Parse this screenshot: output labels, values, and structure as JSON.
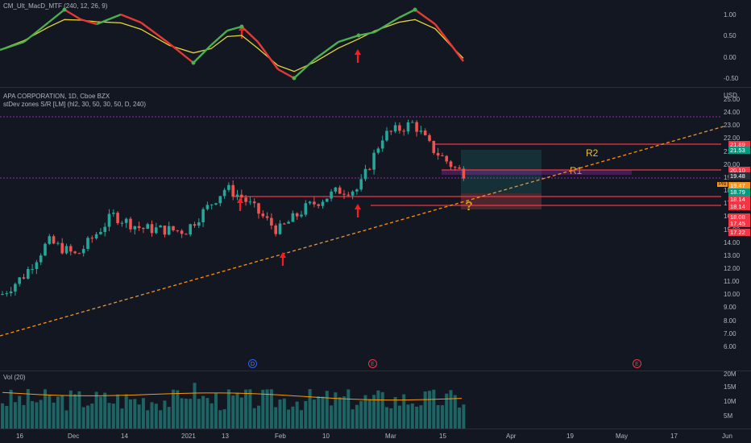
{
  "macd": {
    "title": "CM_Ult_MacD_MTF (240, 12, 26, 9)",
    "ticks": [
      "1.00",
      "0.50",
      "0.00",
      "-0.50"
    ]
  },
  "price": {
    "symbol": "APA CORPORATION, 1D, Cboe BZX",
    "indicator": "stDev zones S/R [LM] (hl2, 30, 50, 30, 50, D, 240)",
    "currency": "USD",
    "ticks": [
      "25.00",
      "24.00",
      "23.00",
      "22.00",
      "21.00",
      "20.00",
      "19.00",
      "18.00",
      "17.00",
      "16.00",
      "15.00",
      "14.00",
      "13.00",
      "12.00",
      "11.00",
      "10.00",
      "9.00",
      "8.00",
      "7.00",
      "6.00"
    ],
    "tags": [
      {
        "text": "21.89",
        "color": "#f23645"
      },
      {
        "text": "21.53",
        "color": "#089981"
      },
      {
        "text": "20.10",
        "color": "#f23645"
      },
      {
        "text": "19.48",
        "color": "#2a2e39"
      },
      {
        "text": "19.47",
        "color": "#f7931a"
      },
      {
        "text": "18.79",
        "color": "#089981"
      },
      {
        "text": "18.14",
        "color": "#f23645"
      },
      {
        "text": "18.14",
        "color": "#f23645"
      },
      {
        "text": "18.08",
        "color": "#f23645"
      },
      {
        "text": "17.45",
        "color": "#f23645"
      },
      {
        "text": "17.22",
        "color": "#f23645"
      }
    ],
    "pre_label": "Pre",
    "annotations": {
      "r1": "R1",
      "r2": "R2",
      "question": "?"
    },
    "events": [
      "D",
      "E",
      "E"
    ]
  },
  "volume": {
    "title": "Vol (20)",
    "ticks": [
      "20M",
      "15M",
      "10M",
      "5M"
    ]
  },
  "dates": [
    "16",
    "Dec",
    "14",
    "2021",
    "13",
    "Feb",
    "10",
    "Mar",
    "15",
    "Apr",
    "19",
    "May",
    "17",
    "Jun"
  ],
  "colors": {
    "bg": "#131722",
    "up": "#26a69a",
    "down": "#ef5350",
    "macd_up": "#4caf50",
    "macd_down": "#e53935",
    "signal": "#e8d53a",
    "trend": "#f7931a",
    "res": "#f23645"
  }
}
